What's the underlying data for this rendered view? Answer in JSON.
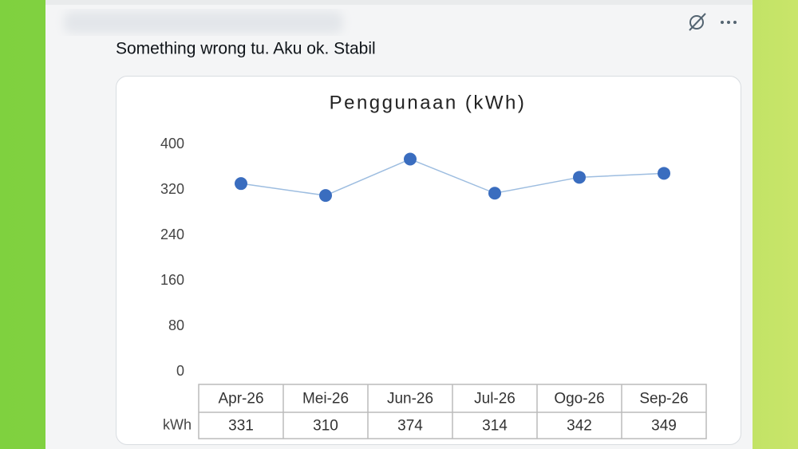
{
  "post": {
    "text": "Something wrong tu. Aku ok. Stabil"
  },
  "chart_data": {
    "type": "line",
    "title": "Penggunaan (kWh)",
    "categories": [
      "Apr-26",
      "Mei-26",
      "Jun-26",
      "Jul-26",
      "Ogo-26",
      "Sep-26"
    ],
    "series": [
      {
        "name": "kWh",
        "color": "#3a6dbf",
        "values": [
          331,
          310,
          374,
          314,
          342,
          349
        ]
      }
    ],
    "line_color": "#9dbde0",
    "ylim": [
      0,
      400
    ],
    "yticks": [
      0,
      80,
      160,
      240,
      320,
      400
    ],
    "grid": false
  }
}
